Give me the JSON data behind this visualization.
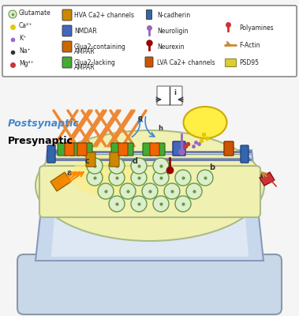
{
  "bg_color": "#f0f4f8",
  "main_bg": "#dce8f0",
  "presynaptic_color": "#e8e8b0",
  "legend_bg": "#ffffff",
  "legend_border": "#888888",
  "text_presynaptic": "Presynaptic",
  "text_postsynaptic": "Postsynaptic",
  "text_presynaptic_color": "#000000",
  "text_postsynaptic_color": "#4488cc",
  "legend_items_col1": [
    "Mg²⁺",
    "Na⁺",
    "K⁺",
    "Ca²⁺",
    "Glutamate"
  ],
  "legend_items_col1_colors": [
    "#cc3333",
    "#333333",
    "#9966cc",
    "#ddcc00",
    "#88cc44"
  ],
  "legend_items_col2": [
    "Glua2-lacking\nAMPAR",
    "Glua2-containing\nAMPAR",
    "NMDAR",
    "HVA Ca2+ channels"
  ],
  "legend_items_col2_colors": [
    "#44aa33",
    "#cc6600",
    "#4466bb",
    "#cc8800"
  ],
  "legend_items_col3": [
    "LVA Ca2+ channels",
    "Neurexin",
    "Neuroligin",
    "N-cadherin"
  ],
  "legend_items_col3_colors": [
    "#cc5500",
    "#990000",
    "#9966bb",
    "#3366aa"
  ],
  "legend_items_col4": [
    "PSD95",
    "F-Actin",
    "Polyamines"
  ],
  "legend_items_col4_colors": [
    "#ddcc33",
    "#cc8833",
    "#cc3333"
  ],
  "figsize": [
    3.79,
    4.0
  ],
  "dpi": 100
}
